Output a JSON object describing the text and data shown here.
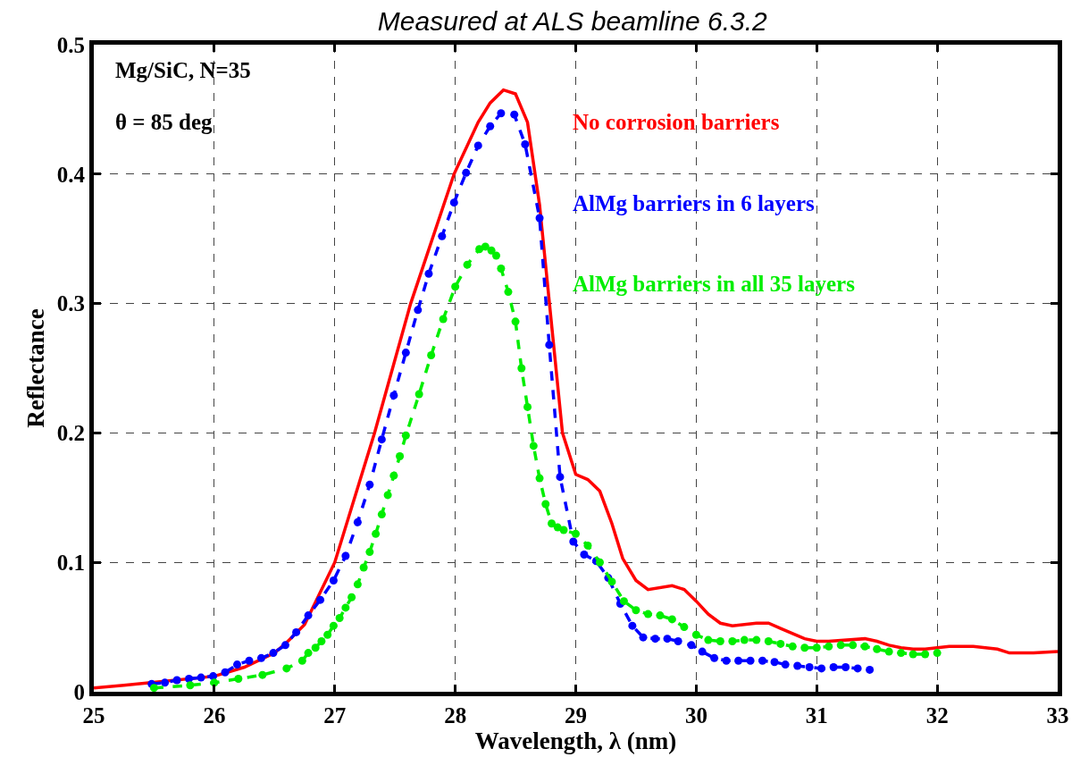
{
  "chart_data": {
    "type": "line",
    "title": "Measured at ALS beamline 6.3.2",
    "xlabel": "Wavelength, λ (nm)",
    "ylabel": "Reflectance",
    "xlim": [
      25,
      33
    ],
    "xticks": [
      25,
      26,
      27,
      28,
      29,
      30,
      31,
      32,
      33
    ],
    "ylim": [
      0,
      0.5
    ],
    "yticks": [
      0,
      0.1,
      0.2,
      0.3,
      0.4,
      0.5
    ],
    "grid": true,
    "legend": false,
    "annotations": [
      "Mg/SiC, N=35",
      "θ = 85 deg"
    ],
    "series": [
      {
        "name": "No corrosion barriers",
        "color": "#ff0000",
        "line_style": "solid",
        "marker": "none",
        "x": [
          25.0,
          25.25,
          26.0,
          26.25,
          26.5,
          26.6,
          26.75,
          27.0,
          27.33,
          27.63,
          27.99,
          28.19,
          28.29,
          28.4,
          28.5,
          28.6,
          28.7,
          28.89,
          29.0,
          29.1,
          29.2,
          29.3,
          29.39,
          29.5,
          29.6,
          29.8,
          29.9,
          30.0,
          30.1,
          30.2,
          30.3,
          30.5,
          30.6,
          30.7,
          30.8,
          30.9,
          31.0,
          31.1,
          31.4,
          31.5,
          31.6,
          31.7,
          31.8,
          31.9,
          32.1,
          32.3,
          32.5,
          32.6,
          32.8,
          33.0
        ],
        "values": [
          0.003,
          0.005,
          0.012,
          0.019,
          0.03,
          0.038,
          0.052,
          0.1,
          0.2,
          0.3,
          0.4,
          0.44,
          0.455,
          0.465,
          0.462,
          0.44,
          0.376,
          0.2,
          0.168,
          0.164,
          0.155,
          0.13,
          0.103,
          0.086,
          0.079,
          0.082,
          0.079,
          0.07,
          0.06,
          0.053,
          0.051,
          0.053,
          0.053,
          0.049,
          0.045,
          0.041,
          0.039,
          0.039,
          0.041,
          0.039,
          0.036,
          0.034,
          0.033,
          0.033,
          0.035,
          0.035,
          0.033,
          0.03,
          0.03,
          0.031
        ]
      },
      {
        "name": "AlMg barriers in 6 layers",
        "color": "#0000ff",
        "line_style": "dashed",
        "marker": "circle",
        "x": [
          25.48,
          25.59,
          25.69,
          25.79,
          25.89,
          25.99,
          26.09,
          26.19,
          26.29,
          26.39,
          26.49,
          26.59,
          26.68,
          26.78,
          26.88,
          26.99,
          27.09,
          27.19,
          27.29,
          27.39,
          27.49,
          27.59,
          27.69,
          27.78,
          27.89,
          27.99,
          28.09,
          28.19,
          28.29,
          28.38,
          28.49,
          28.58,
          28.7,
          28.78,
          28.87,
          28.98,
          29.07,
          29.17,
          29.27,
          29.37,
          29.47,
          29.56,
          29.66,
          29.76,
          29.85,
          29.96,
          30.05,
          30.15,
          30.25,
          30.35,
          30.45,
          30.55,
          30.65,
          30.74,
          30.84,
          30.94,
          31.04,
          31.14,
          31.24,
          31.34,
          31.44
        ],
        "values": [
          0.006,
          0.007,
          0.009,
          0.01,
          0.011,
          0.012,
          0.015,
          0.021,
          0.024,
          0.026,
          0.03,
          0.036,
          0.046,
          0.059,
          0.071,
          0.086,
          0.105,
          0.131,
          0.16,
          0.195,
          0.229,
          0.262,
          0.295,
          0.323,
          0.352,
          0.378,
          0.401,
          0.422,
          0.437,
          0.447,
          0.446,
          0.423,
          0.366,
          0.268,
          0.166,
          0.116,
          0.106,
          0.101,
          0.088,
          0.068,
          0.051,
          0.042,
          0.041,
          0.041,
          0.039,
          0.036,
          0.031,
          0.026,
          0.024,
          0.024,
          0.024,
          0.024,
          0.023,
          0.021,
          0.02,
          0.019,
          0.018,
          0.019,
          0.019,
          0.018,
          0.017
        ]
      },
      {
        "name": "AlMg barriers in all 35 layers",
        "color": "#00ee00",
        "line_style": "dashed",
        "marker": "circle",
        "x": [
          25.5,
          25.8,
          26.0,
          26.2,
          26.4,
          26.6,
          26.73,
          26.78,
          26.84,
          26.89,
          26.94,
          26.99,
          27.04,
          27.09,
          27.14,
          27.19,
          27.24,
          27.29,
          27.34,
          27.39,
          27.44,
          27.49,
          27.54,
          27.59,
          27.7,
          27.8,
          27.9,
          28.0,
          28.1,
          28.2,
          28.25,
          28.3,
          28.34,
          28.38,
          28.44,
          28.5,
          28.55,
          28.6,
          28.65,
          28.7,
          28.75,
          28.8,
          28.85,
          28.9,
          29.0,
          29.1,
          29.2,
          29.3,
          29.4,
          29.5,
          29.6,
          29.7,
          29.8,
          29.9,
          30.0,
          30.1,
          30.2,
          30.3,
          30.4,
          30.5,
          30.6,
          30.7,
          30.8,
          30.9,
          31.0,
          31.1,
          31.2,
          31.3,
          31.4,
          31.5,
          31.6,
          31.7,
          31.8,
          31.9,
          32.0
        ],
        "values": [
          0.003,
          0.005,
          0.007,
          0.01,
          0.013,
          0.018,
          0.024,
          0.03,
          0.034,
          0.039,
          0.044,
          0.051,
          0.057,
          0.065,
          0.073,
          0.083,
          0.096,
          0.108,
          0.122,
          0.137,
          0.152,
          0.167,
          0.182,
          0.198,
          0.23,
          0.26,
          0.288,
          0.313,
          0.33,
          0.342,
          0.344,
          0.341,
          0.337,
          0.327,
          0.309,
          0.286,
          0.25,
          0.22,
          0.19,
          0.165,
          0.145,
          0.13,
          0.127,
          0.125,
          0.122,
          0.113,
          0.1,
          0.085,
          0.07,
          0.063,
          0.06,
          0.059,
          0.056,
          0.05,
          0.044,
          0.04,
          0.039,
          0.039,
          0.04,
          0.04,
          0.039,
          0.037,
          0.035,
          0.034,
          0.034,
          0.035,
          0.036,
          0.036,
          0.035,
          0.033,
          0.031,
          0.03,
          0.029,
          0.029,
          0.03
        ]
      }
    ]
  }
}
